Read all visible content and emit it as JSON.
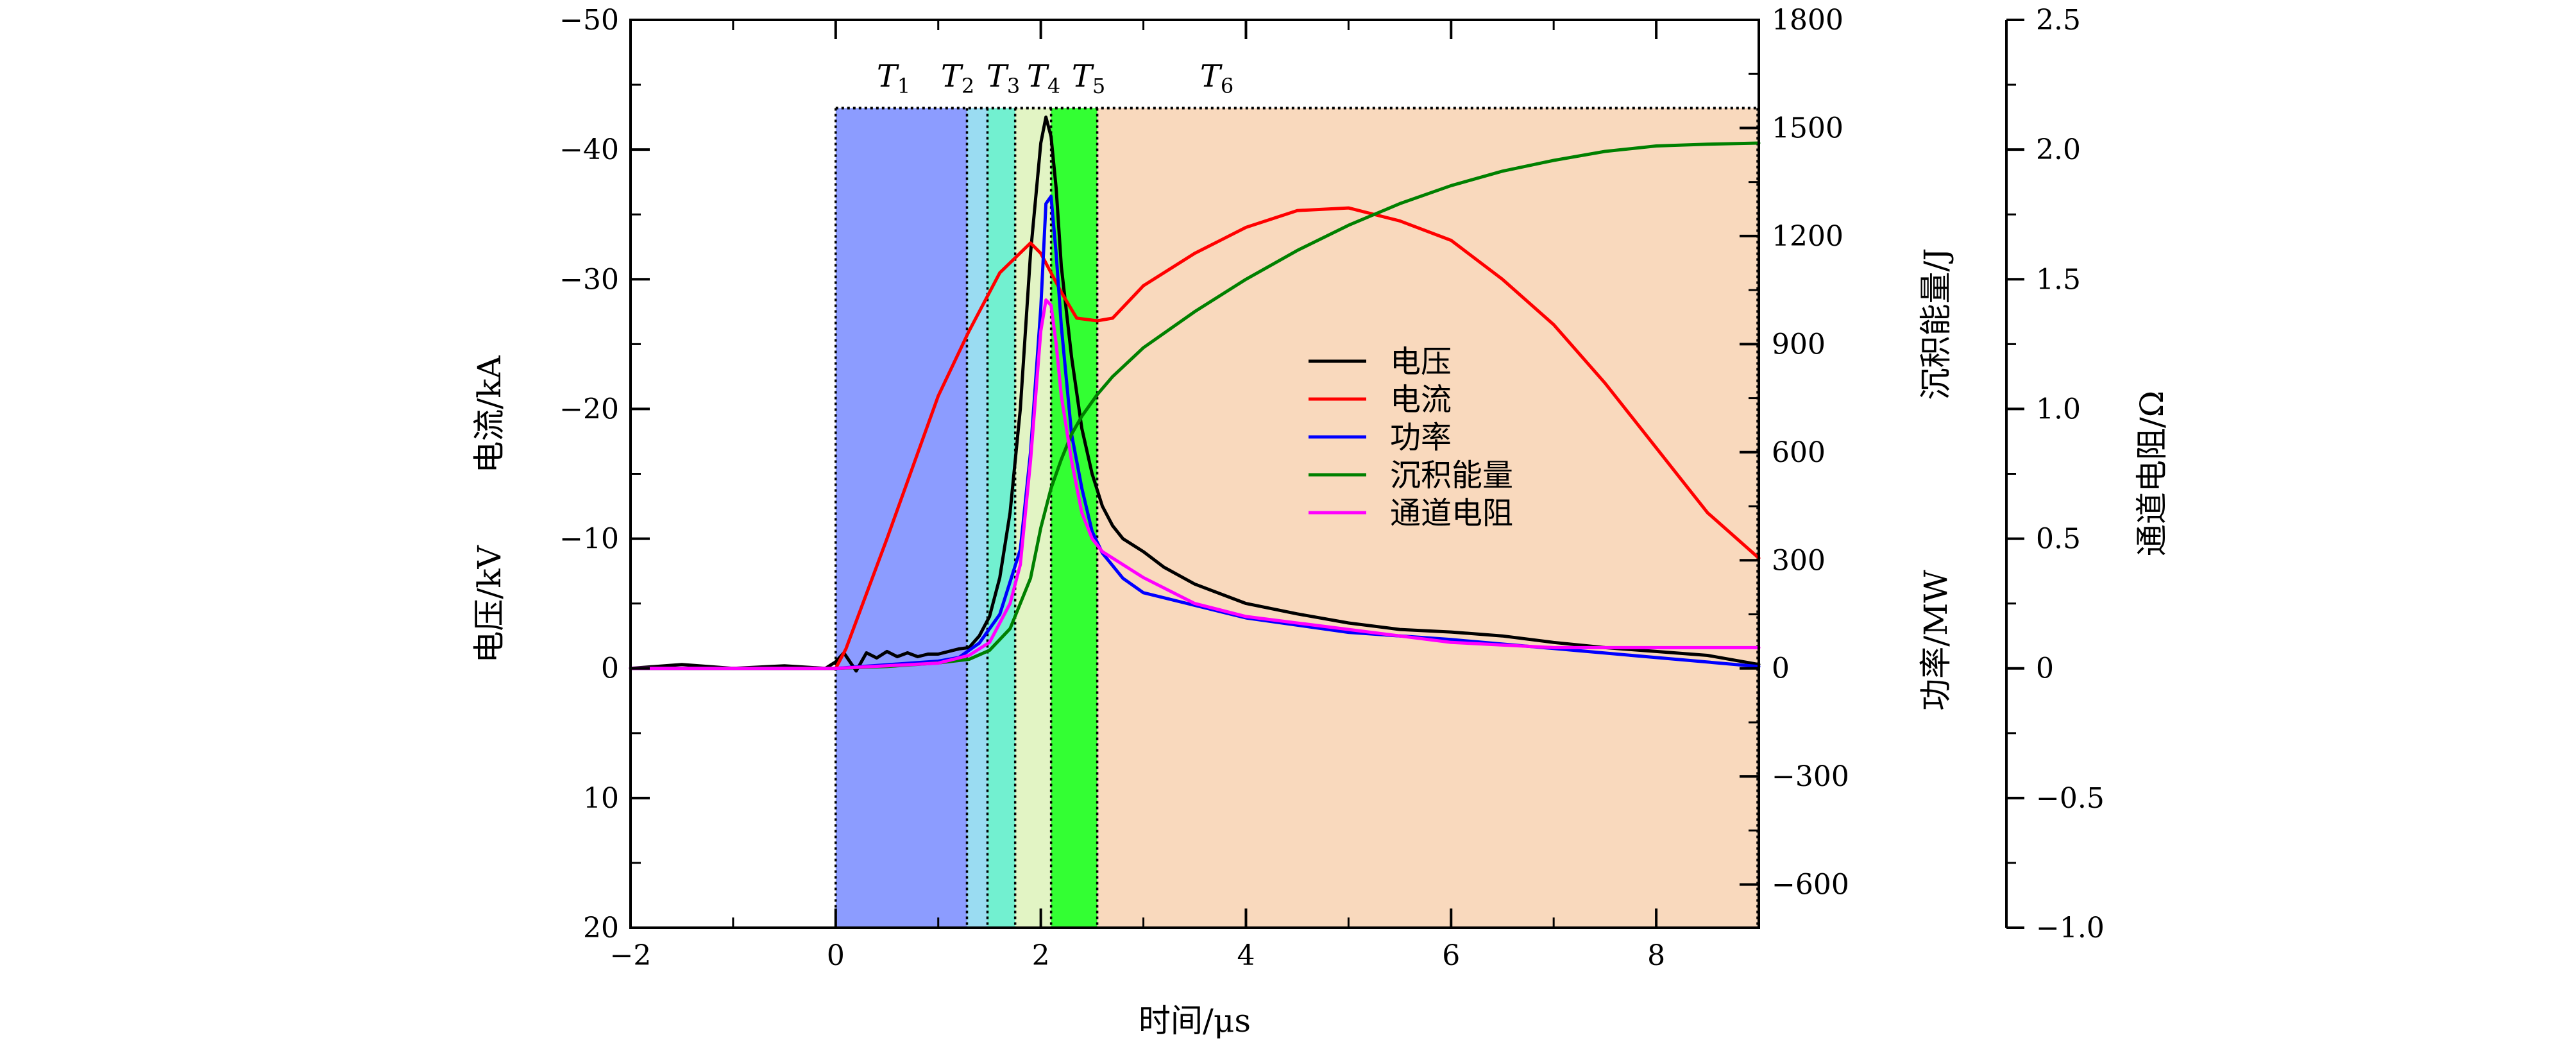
{
  "chart_data": {
    "type": "line",
    "x": {
      "label": "时间/μs",
      "lim": [
        -2,
        9
      ],
      "ticks": [
        -2,
        0,
        2,
        4,
        6,
        8
      ],
      "tick_labels": [
        "−2",
        "0",
        "2",
        "4",
        "6",
        "8"
      ]
    },
    "y_left": {
      "label_lines": [
        "电压/kV",
        "电流/kA"
      ],
      "lim": [
        -50,
        20
      ],
      "inverted": true,
      "ticks": [
        -50,
        -40,
        -30,
        -20,
        -10,
        0,
        10,
        20
      ],
      "tick_labels": [
        "−50",
        "−40",
        "−30",
        "−20",
        "−10",
        "0",
        "10",
        "20"
      ]
    },
    "y_right1": {
      "label_lines": [
        "沉积能量/J",
        "功率/MW"
      ],
      "lim": [
        -720,
        1800
      ],
      "ticks": [
        -600,
        -300,
        0,
        300,
        600,
        900,
        1200,
        1500,
        1800
      ],
      "tick_labels": [
        "−600",
        "−300",
        "0",
        "300",
        "600",
        "900",
        "1200",
        "1500",
        "1800"
      ]
    },
    "y_right2": {
      "label": "通道电阻/Ω",
      "lim": [
        -1.0,
        2.5
      ],
      "ticks": [
        -1.0,
        -0.5,
        0,
        0.5,
        1.0,
        1.5,
        2.0,
        2.5
      ],
      "tick_labels": [
        "−1.0",
        "−0.5",
        "0",
        "0.5",
        "1.0",
        "1.5",
        "2.0",
        "2.5"
      ]
    },
    "phases": [
      {
        "label": "T",
        "sub": "1",
        "x0": 0.0,
        "x1": 1.28,
        "color": "#8c9cff"
      },
      {
        "label": "T",
        "sub": "2",
        "x0": 1.28,
        "x1": 1.48,
        "color": "#9adcf2"
      },
      {
        "label": "T",
        "sub": "3",
        "x0": 1.48,
        "x1": 1.75,
        "color": "#72f0d0"
      },
      {
        "label": "T",
        "sub": "4",
        "x0": 1.75,
        "x1": 2.1,
        "color": "#e2f4c4"
      },
      {
        "label": "T",
        "sub": "5",
        "x0": 2.1,
        "x1": 2.55,
        "color": "#33ff33"
      },
      {
        "label": "T",
        "sub": "6",
        "x0": 2.55,
        "x1": 9.0,
        "color": "#f9d9bd"
      }
    ],
    "phase_top_kv": -43.2,
    "series": [
      {
        "name": "电压",
        "axis": "left",
        "color": "#000000",
        "x": [
          -2,
          -1.5,
          -1,
          -0.5,
          -0.1,
          0.0,
          0.08,
          0.2,
          0.3,
          0.4,
          0.5,
          0.6,
          0.7,
          0.8,
          0.9,
          1.0,
          1.1,
          1.2,
          1.3,
          1.4,
          1.5,
          1.6,
          1.7,
          1.8,
          1.9,
          2.0,
          2.05,
          2.1,
          2.15,
          2.2,
          2.3,
          2.4,
          2.5,
          2.6,
          2.7,
          2.8,
          2.9,
          3.0,
          3.2,
          3.5,
          4.0,
          4.5,
          5.0,
          5.5,
          6.0,
          6.5,
          7.0,
          7.5,
          8.0,
          8.5,
          9.0
        ],
        "y": [
          0,
          -0.3,
          0,
          -0.2,
          0,
          -0.5,
          -1.2,
          0.2,
          -1.2,
          -0.8,
          -1.3,
          -0.9,
          -1.2,
          -0.9,
          -1.1,
          -1.1,
          -1.3,
          -1.5,
          -1.6,
          -2.5,
          -4.0,
          -7.0,
          -12.0,
          -20.0,
          -32.0,
          -40.5,
          -42.5,
          -41.0,
          -37.0,
          -31.0,
          -24.0,
          -18.5,
          -15.0,
          -12.5,
          -11.0,
          -10.0,
          -9.5,
          -9.0,
          -7.8,
          -6.5,
          -5.0,
          -4.2,
          -3.5,
          -3.0,
          -2.8,
          -2.5,
          -2.0,
          -1.6,
          -1.3,
          -1.0,
          -0.3
        ]
      },
      {
        "name": "电流",
        "axis": "left",
        "color": "#ff0000",
        "x": [
          -2,
          -1,
          -0.5,
          0.0,
          0.1,
          0.5,
          1.0,
          1.3,
          1.6,
          1.9,
          2.0,
          2.2,
          2.35,
          2.55,
          2.7,
          3.0,
          3.5,
          4.0,
          4.5,
          5.0,
          5.5,
          6.0,
          6.5,
          7.0,
          7.5,
          8.0,
          8.5,
          9.0
        ],
        "y": [
          0,
          0,
          0,
          0,
          -1.5,
          -10.0,
          -21.0,
          -26.0,
          -30.5,
          -32.8,
          -32.0,
          -29.0,
          -27.0,
          -26.8,
          -27.0,
          -29.5,
          -32.0,
          -34.0,
          -35.3,
          -35.5,
          -34.5,
          -33.0,
          -30.0,
          -26.5,
          -22.0,
          -17.0,
          -12.0,
          -8.5
        ]
      },
      {
        "name": "功率",
        "axis": "right1",
        "color": "#0000ff",
        "x": [
          -2,
          0,
          0.5,
          1.0,
          1.2,
          1.4,
          1.6,
          1.8,
          1.9,
          2.0,
          2.05,
          2.1,
          2.15,
          2.2,
          2.3,
          2.4,
          2.5,
          2.6,
          2.8,
          3.0,
          3.5,
          4.0,
          5.0,
          6.0,
          7.0,
          8.0,
          9.0
        ],
        "y": [
          0,
          0,
          10,
          20,
          30,
          70,
          150,
          330,
          600,
          1000,
          1290,
          1310,
          1150,
          950,
          650,
          500,
          380,
          320,
          250,
          210,
          175,
          140,
          100,
          80,
          55,
          30,
          5
        ]
      },
      {
        "name": "沉积能量",
        "axis": "right1",
        "color": "#008000",
        "x": [
          -2,
          0,
          0.5,
          1.0,
          1.3,
          1.5,
          1.7,
          1.9,
          2.0,
          2.1,
          2.2,
          2.3,
          2.4,
          2.55,
          2.7,
          3.0,
          3.5,
          4.0,
          4.5,
          5.0,
          5.5,
          6.0,
          6.5,
          7.0,
          7.5,
          8.0,
          8.5,
          9.0
        ],
        "y": [
          0,
          0,
          5,
          15,
          25,
          50,
          110,
          250,
          390,
          500,
          580,
          650,
          700,
          760,
          810,
          890,
          990,
          1080,
          1160,
          1230,
          1290,
          1340,
          1380,
          1410,
          1435,
          1450,
          1455,
          1458
        ]
      },
      {
        "name": "通道电阻",
        "axis": "right2",
        "color": "#ff00ff",
        "x": [
          -2,
          0,
          0.5,
          1.0,
          1.3,
          1.5,
          1.7,
          1.8,
          1.9,
          2.0,
          2.05,
          2.1,
          2.15,
          2.2,
          2.3,
          2.4,
          2.5,
          2.6,
          2.8,
          3.0,
          3.5,
          4.0,
          5.0,
          6.0,
          7.0,
          8.0,
          9.0
        ],
        "y": [
          0,
          0,
          0.01,
          0.02,
          0.05,
          0.1,
          0.25,
          0.4,
          0.8,
          1.3,
          1.42,
          1.4,
          1.25,
          1.05,
          0.8,
          0.6,
          0.5,
          0.45,
          0.4,
          0.35,
          0.25,
          0.2,
          0.15,
          0.1,
          0.08,
          0.08,
          0.08
        ]
      }
    ],
    "legend": {
      "position": "center",
      "entries": [
        "电压",
        "电流",
        "功率",
        "沉积能量",
        "通道电阻"
      ]
    }
  }
}
